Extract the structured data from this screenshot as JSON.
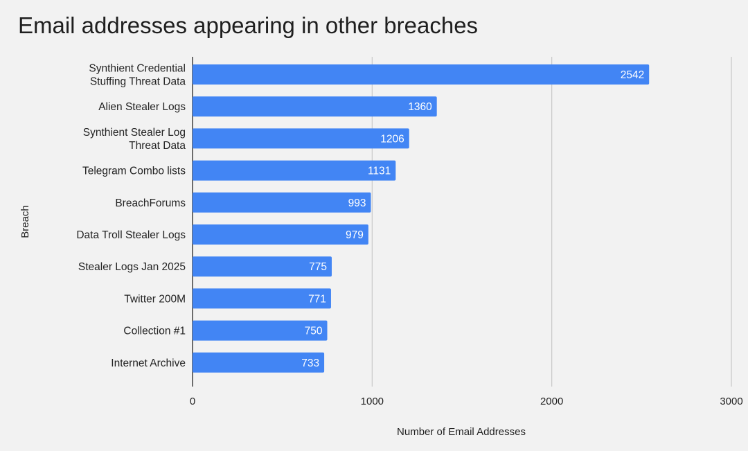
{
  "chart_data": {
    "type": "bar",
    "orientation": "horizontal",
    "title": "Email addresses appearing in other breaches",
    "xlabel": "Number of Email Addresses",
    "ylabel": "Breach",
    "xlim": [
      0,
      3000
    ],
    "x_ticks": [
      "0",
      "1000",
      "2000",
      "3000"
    ],
    "grid": "vertical",
    "data_labels": "inside-end",
    "bar_color": "#4285f4",
    "categories": [
      [
        "Synthient Credential",
        "Stuffing Threat Data"
      ],
      [
        "Alien Stealer Logs"
      ],
      [
        "Synthient Stealer Log",
        "Threat Data"
      ],
      [
        "Telegram Combo lists"
      ],
      [
        "BreachForums"
      ],
      [
        "Data Troll Stealer Logs"
      ],
      [
        "Stealer Logs Jan 2025"
      ],
      [
        "Twitter 200M"
      ],
      [
        "Collection #1"
      ],
      [
        "Internet Archive"
      ]
    ],
    "values": [
      2542,
      1360,
      1206,
      1131,
      993,
      979,
      775,
      771,
      750,
      733
    ]
  }
}
